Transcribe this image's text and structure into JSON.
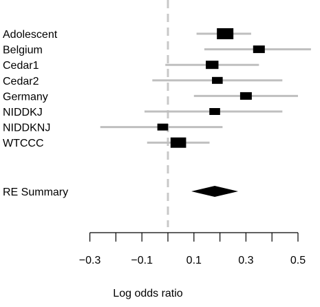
{
  "chart_data": {
    "type": "forest",
    "xlabel": "Log odds ratio",
    "xlim": [
      -0.3,
      0.55
    ],
    "x_ticks": [
      -0.3,
      -0.2,
      -0.1,
      0.0,
      0.1,
      0.2,
      0.3,
      0.4,
      0.5
    ],
    "x_tick_labels": [
      {
        "value": -0.3,
        "label": "−0.3"
      },
      {
        "value": -0.1,
        "label": "−0.1"
      },
      {
        "value": 0.1,
        "label": "0.1"
      },
      {
        "value": 0.3,
        "label": "0.3"
      },
      {
        "value": 0.5,
        "label": "0.5"
      }
    ],
    "reference_line": 0.0,
    "studies": [
      {
        "label": "Adolescent",
        "estimate": 0.22,
        "lower": 0.11,
        "upper": 0.32,
        "weight": 1.0
      },
      {
        "label": "Belgium",
        "estimate": 0.35,
        "lower": 0.14,
        "upper": 0.55,
        "weight": 0.5
      },
      {
        "label": "Cedar1",
        "estimate": 0.17,
        "lower": -0.01,
        "upper": 0.35,
        "weight": 0.6
      },
      {
        "label": "Cedar2",
        "estimate": 0.19,
        "lower": -0.06,
        "upper": 0.44,
        "weight": 0.4
      },
      {
        "label": "Germany",
        "estimate": 0.3,
        "lower": 0.1,
        "upper": 0.5,
        "weight": 0.5
      },
      {
        "label": "NIDDKJ",
        "estimate": 0.18,
        "lower": -0.09,
        "upper": 0.44,
        "weight": 0.4
      },
      {
        "label": "NIDDKNJ",
        "estimate": -0.02,
        "lower": -0.26,
        "upper": 0.21,
        "weight": 0.4
      },
      {
        "label": "WTCCC",
        "estimate": 0.04,
        "lower": -0.08,
        "upper": 0.16,
        "weight": 0.9
      }
    ],
    "summary": {
      "label": "RE Summary",
      "estimate": 0.18,
      "lower": 0.09,
      "upper": 0.27
    },
    "colors": {
      "ci_line": "#bfbfbf",
      "box": "#000000",
      "ref_line": "#c8c8c8",
      "axis": "#000000"
    }
  }
}
